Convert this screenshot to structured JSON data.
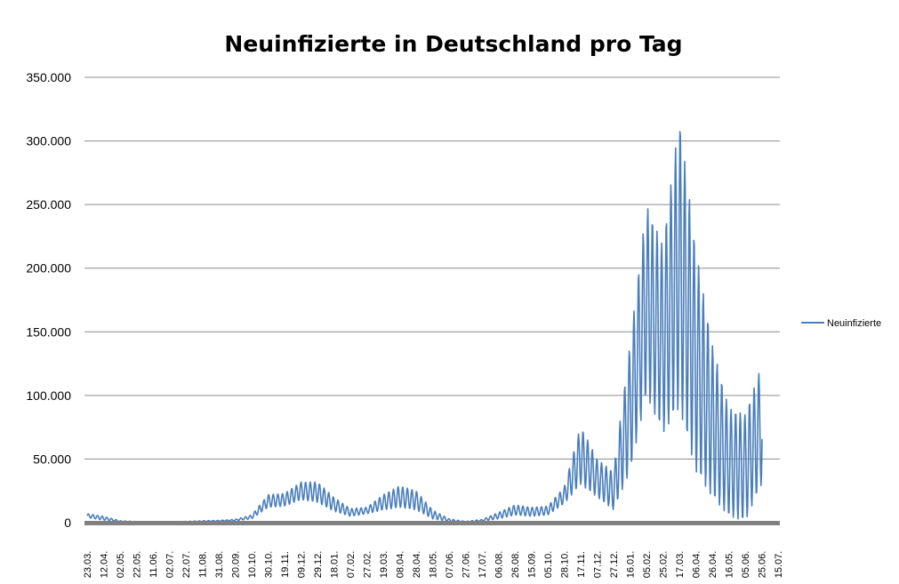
{
  "chart_data": {
    "type": "line",
    "title": "Neuinfizierte in Deutschland pro Tag",
    "xlabel": "",
    "ylabel": "",
    "ylim": [
      0,
      350000
    ],
    "y_ticks": [
      "0",
      "50.000",
      "100.000",
      "150.000",
      "200.000",
      "250.000",
      "300.000",
      "350.000"
    ],
    "x_tick_labels": [
      "23.03.",
      "12.04.",
      "02.05.",
      "22.05.",
      "11.06.",
      "02.07.",
      "22.07.",
      "11.08.",
      "31.08.",
      "20.09.",
      "10.10.",
      "30.10.",
      "19.11.",
      "09.12.",
      "29.12.",
      "18.01.",
      "07.02.",
      "27.02.",
      "19.03.",
      "08.04.",
      "28.04.",
      "18.05.",
      "07.06.",
      "27.06.",
      "17.07.",
      "06.08.",
      "26.08.",
      "15.09.",
      "05.10.",
      "28.10.",
      "17.11.",
      "07.12.",
      "27.12.",
      "16.01.",
      "05.02.",
      "25.02.",
      "17.03.",
      "06.04.",
      "26.04.",
      "16.05.",
      "05.06.",
      "25.06.",
      "15.07."
    ],
    "grid": true,
    "legend_position": "right",
    "series": [
      {
        "name": "Neuinfizierte",
        "color": "#4A7EBB",
        "envelope_note": "weekly oscillation between low and high values",
        "points": [
          {
            "x": "23.03.",
            "low": 4000,
            "high": 7000
          },
          {
            "x": "12.04.",
            "low": 2000,
            "high": 5000
          },
          {
            "x": "02.05.",
            "low": 700,
            "high": 1500
          },
          {
            "x": "22.05.",
            "low": 400,
            "high": 900
          },
          {
            "x": "11.06.",
            "low": 300,
            "high": 700
          },
          {
            "x": "02.07.",
            "low": 300,
            "high": 700
          },
          {
            "x": "22.07.",
            "low": 500,
            "high": 1000
          },
          {
            "x": "11.08.",
            "low": 800,
            "high": 1500
          },
          {
            "x": "31.08.",
            "low": 1000,
            "high": 1800
          },
          {
            "x": "20.09.",
            "low": 1500,
            "high": 2500
          },
          {
            "x": "10.10.",
            "low": 3000,
            "high": 6000
          },
          {
            "x": "30.10.",
            "low": 12000,
            "high": 22000
          },
          {
            "x": "19.11.",
            "low": 13000,
            "high": 23000
          },
          {
            "x": "09.12.",
            "low": 18000,
            "high": 32000
          },
          {
            "x": "29.12.",
            "low": 16000,
            "high": 32000
          },
          {
            "x": "18.01.",
            "low": 9000,
            "high": 20000
          },
          {
            "x": "07.02.",
            "low": 5000,
            "high": 11000
          },
          {
            "x": "27.02.",
            "low": 7000,
            "high": 12000
          },
          {
            "x": "19.03.",
            "low": 10000,
            "high": 22000
          },
          {
            "x": "08.04.",
            "low": 12000,
            "high": 29000
          },
          {
            "x": "28.04.",
            "low": 10000,
            "high": 25000
          },
          {
            "x": "18.05.",
            "low": 3000,
            "high": 10000
          },
          {
            "x": "07.06.",
            "low": 800,
            "high": 3000
          },
          {
            "x": "27.06.",
            "low": 400,
            "high": 1000
          },
          {
            "x": "17.07.",
            "low": 1000,
            "high": 2500
          },
          {
            "x": "06.08.",
            "low": 3000,
            "high": 8000
          },
          {
            "x": "26.08.",
            "low": 6000,
            "high": 14000
          },
          {
            "x": "15.09.",
            "low": 5000,
            "high": 12000
          },
          {
            "x": "05.10.",
            "low": 6000,
            "high": 13000
          },
          {
            "x": "28.10.",
            "low": 15000,
            "high": 28000
          },
          {
            "x": "17.11.",
            "low": 30000,
            "high": 76000
          },
          {
            "x": "07.12.",
            "low": 20000,
            "high": 50000
          },
          {
            "x": "27.12.",
            "low": 10000,
            "high": 40000
          },
          {
            "x": "16.01.",
            "low": 40000,
            "high": 140000
          },
          {
            "x": "05.02.",
            "low": 100000,
            "high": 250000
          },
          {
            "x": "25.02.",
            "low": 70000,
            "high": 218000
          },
          {
            "x": "17.03.",
            "low": 90000,
            "high": 318000
          },
          {
            "x": "06.04.",
            "low": 40000,
            "high": 215000
          },
          {
            "x": "26.04.",
            "low": 20000,
            "high": 140000
          },
          {
            "x": "16.05.",
            "low": 5000,
            "high": 90000
          },
          {
            "x": "05.06.",
            "low": 1000,
            "high": 85000
          },
          {
            "x": "25.06.",
            "low": 30000,
            "high": 124000
          }
        ]
      }
    ]
  }
}
